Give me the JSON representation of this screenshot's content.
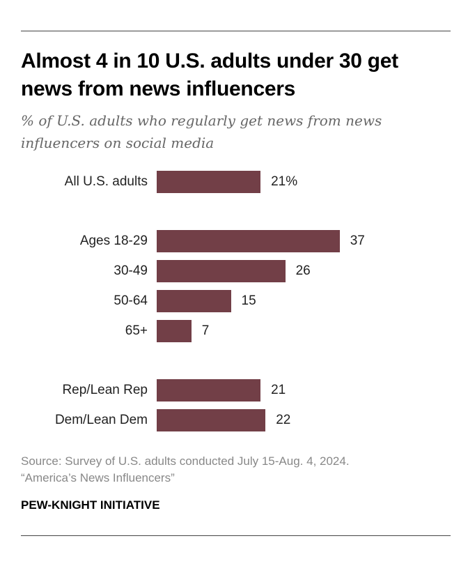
{
  "title": "Almost 4 in 10 U.S. adults under 30 get news from news influencers",
  "subtitle": "% of U.S. adults who regularly get news from news influencers on social media",
  "source": "Source: Survey of U.S. adults conducted July 15-Aug. 4, 2024.",
  "report": "“America’s News Influencers”",
  "brand": "PEW-KNIGHT INITIATIVE",
  "chart_data": {
    "type": "bar",
    "orientation": "horizontal",
    "title": "Almost 4 in 10 U.S. adults under 30 get news from news influencers",
    "categories": [
      "All U.S. adults",
      "Ages 18-29",
      "30-49",
      "50-64",
      "65+",
      "Rep/Lean Rep",
      "Dem/Lean Dem"
    ],
    "values": [
      21,
      37,
      26,
      15,
      7,
      21,
      22
    ],
    "value_labels": [
      "21%",
      "37",
      "26",
      "15",
      "7",
      "21",
      "22"
    ],
    "groups": [
      [
        0
      ],
      [
        1,
        2,
        3,
        4
      ],
      [
        5,
        6
      ]
    ],
    "color": "#723f47",
    "xlim": [
      0,
      40
    ],
    "grid": false
  }
}
